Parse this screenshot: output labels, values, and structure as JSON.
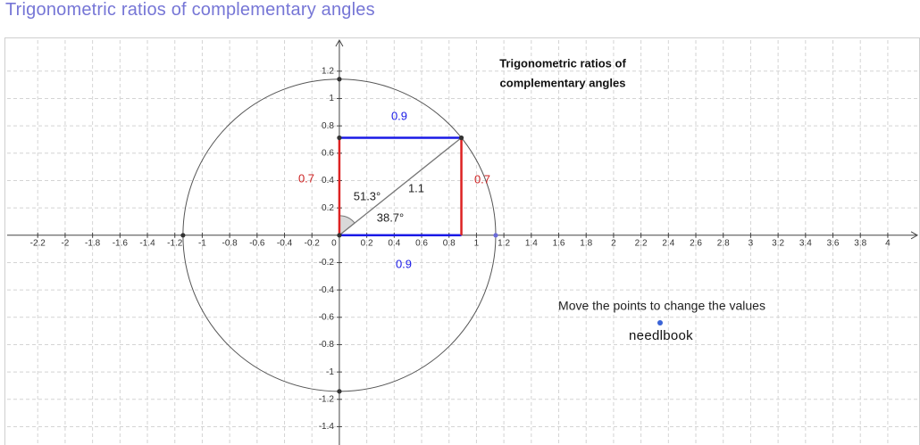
{
  "page_title": "Trigonometric ratios of complementary angles",
  "chart_data": {
    "type": "unit-circle",
    "title": [
      "Trigonometric ratios of",
      "complementary angles"
    ],
    "point": {
      "x": 0.89,
      "y": 0.713
    },
    "labels": [
      "0.9",
      "0.7",
      "51.3°",
      "1.1",
      "38.7°",
      "0.7",
      "0.9"
    ],
    "note": "Move the points to change the values",
    "logo": "needlbook",
    "xlim": [
      -2.423,
      4.222
    ],
    "ylim": [
      -1.534,
      1.427
    ],
    "xticks": [
      -2.2,
      -2,
      -1.8,
      -1.6,
      -1.4,
      -1.2,
      -1,
      -0.8,
      -0.6,
      -0.4,
      -0.2,
      0,
      0.2,
      0.4,
      0.6,
      0.8,
      1,
      1.2,
      1.4,
      1.6,
      1.8,
      2,
      2.2,
      2.4,
      2.6,
      2.8,
      3,
      3.2,
      3.4,
      3.6,
      3.8,
      4
    ],
    "yticks": [
      -1.4,
      -1.2,
      -1,
      -0.8,
      -0.6,
      -0.4,
      -0.2,
      0.2,
      0.4,
      0.6,
      0.8,
      1,
      1.2
    ],
    "grid": true
  }
}
